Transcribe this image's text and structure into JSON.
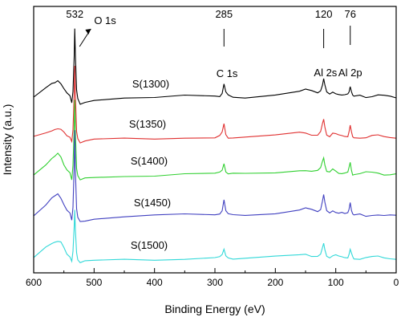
{
  "chart_data": {
    "type": "line",
    "xlabel": "Binding Energy (eV)",
    "ylabel": "Intensity (a.u.)",
    "xlim": [
      600,
      0
    ],
    "x_reversed": true,
    "x_ticks": [
      600,
      500,
      400,
      300,
      200,
      100,
      0
    ],
    "y_ticks_shown": false,
    "grid": false,
    "legend": "none",
    "peak_markers": [
      {
        "value": 532,
        "label": "532"
      },
      {
        "value": 285,
        "label": "285"
      },
      {
        "value": 120,
        "label": "120"
      },
      {
        "value": 76,
        "label": "76"
      }
    ],
    "annotations": [
      {
        "text": "O 1s",
        "x": 500,
        "arrow_to": 532
      },
      {
        "text": "C 1s",
        "x": 280
      },
      {
        "text": "Al 2s",
        "x": 117
      },
      {
        "text": "Al 2p",
        "x": 76
      }
    ],
    "series_x": [
      600,
      580,
      570,
      565,
      560,
      555,
      550,
      545,
      540,
      537,
      535,
      533,
      532,
      531,
      529,
      527,
      523,
      515,
      500,
      450,
      400,
      350,
      300,
      292,
      288,
      285,
      282,
      278,
      270,
      250,
      200,
      160,
      150,
      140,
      130,
      125,
      122,
      120,
      118,
      115,
      110,
      105,
      100,
      95,
      90,
      85,
      80,
      78,
      76,
      74,
      72,
      70,
      60,
      50,
      40,
      30,
      20,
      10,
      0
    ],
    "series": [
      {
        "name": "S(1300)",
        "color": "#000000",
        "values": [
          0,
          6,
          9,
          10,
          12,
          10,
          6,
          3,
          1,
          -4,
          4,
          28,
          48,
          30,
          5,
          -1,
          -5,
          -3,
          -2,
          -1,
          -1,
          1,
          1,
          1,
          3,
          9,
          3,
          1,
          0,
          0,
          2,
          4,
          5,
          4,
          3,
          5,
          9,
          13,
          8,
          3,
          2,
          4,
          3,
          2,
          1,
          1,
          2,
          4,
          8,
          4,
          1,
          0,
          1,
          0,
          1,
          2,
          1,
          0,
          -1
        ]
      },
      {
        "name": "S(1350)",
        "color": "#e03030",
        "values": [
          0,
          3,
          5,
          6,
          6,
          5,
          3,
          1,
          0,
          -3,
          5,
          30,
          50,
          30,
          4,
          -1,
          -4,
          -3,
          -2,
          -1,
          -1,
          0,
          0,
          1,
          3,
          9,
          2,
          0,
          0,
          0,
          1,
          3,
          3,
          2,
          2,
          4,
          9,
          12,
          7,
          2,
          1,
          3,
          2,
          1,
          1,
          1,
          1,
          4,
          8,
          3,
          0,
          0,
          0,
          0,
          1,
          1,
          0,
          0,
          0
        ]
      },
      {
        "name": "S(1400)",
        "color": "#30d030",
        "values": [
          0,
          7,
          11,
          12,
          14,
          12,
          7,
          3,
          1,
          -4,
          6,
          32,
          52,
          30,
          4,
          -1,
          -4,
          -3,
          -2,
          -1,
          -1,
          0,
          0,
          1,
          3,
          8,
          2,
          0,
          0,
          0,
          1,
          3,
          3,
          2,
          2,
          4,
          9,
          12,
          7,
          2,
          1,
          3,
          2,
          1,
          1,
          1,
          1,
          4,
          8,
          3,
          0,
          0,
          0,
          1,
          1,
          1,
          0,
          0,
          0
        ]
      },
      {
        "name": "S(1450)",
        "color": "#4040c0",
        "values": [
          0,
          7,
          12,
          14,
          16,
          13,
          8,
          4,
          2,
          -3,
          6,
          35,
          60,
          32,
          5,
          -1,
          -4,
          -3,
          -2,
          -1,
          0,
          1,
          1,
          2,
          4,
          11,
          3,
          1,
          1,
          1,
          2,
          4,
          5,
          4,
          3,
          5,
          11,
          15,
          9,
          3,
          2,
          4,
          3,
          2,
          2,
          1,
          2,
          5,
          10,
          4,
          1,
          0,
          1,
          0,
          1,
          1,
          0,
          0,
          0
        ]
      },
      {
        "name": "S(1500)",
        "color": "#30d8d8",
        "values": [
          0,
          8,
          11,
          12,
          12,
          11,
          7,
          3,
          1,
          -2,
          5,
          22,
          34,
          20,
          4,
          -1,
          -3,
          -2,
          -2,
          -1,
          -1,
          0,
          1,
          1,
          2,
          6,
          2,
          1,
          0,
          0,
          1,
          2,
          3,
          2,
          2,
          3,
          7,
          10,
          6,
          2,
          1,
          2,
          2,
          1,
          1,
          1,
          1,
          3,
          6,
          3,
          1,
          0,
          0,
          1,
          1,
          1,
          0,
          0,
          0
        ]
      }
    ]
  }
}
